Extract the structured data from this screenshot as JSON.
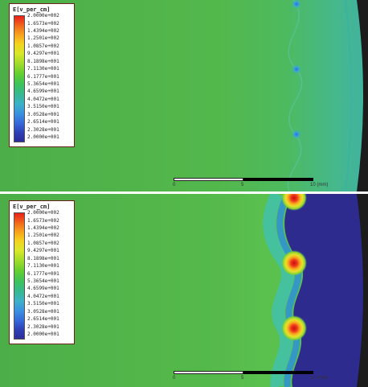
{
  "panels": [
    {
      "legend_title": "E[v_per_cm]",
      "legend_values": [
        "2.0000e+002",
        "1.6573e+002",
        "1.4394e+002",
        "1.2501e+002",
        "1.0857e+002",
        "9.4297e+001",
        "8.1898e+001",
        "7.1130e+001",
        "6.1777e+001",
        "5.3654e+001",
        "4.6599e+001",
        "4.0472e+001",
        "3.5150e+001",
        "3.0528e+001",
        "2.6514e+001",
        "2.3028e+001",
        "2.0000e+001"
      ],
      "scale_ticks": [
        "0",
        "5",
        "10 (mm)"
      ]
    },
    {
      "legend_title": "E[v_per_cm]",
      "legend_values": [
        "2.0000e+002",
        "1.6573e+002",
        "1.4394e+002",
        "1.2501e+002",
        "1.0857e+002",
        "9.4297e+001",
        "8.1898e+001",
        "7.1130e+001",
        "6.1777e+001",
        "5.3654e+001",
        "4.6599e+001",
        "4.0472e+001",
        "3.5150e+001",
        "3.0528e+001",
        "2.6514e+001",
        "2.3028e+001",
        "2.0000e+001"
      ],
      "scale_ticks": [
        "0",
        "5",
        "10 (mm)"
      ]
    }
  ],
  "colors": {
    "field_green": "#4db34a",
    "low_field_blue": "#2e2b8f",
    "hotspot_red": "#e8201c",
    "legend_border": "#6b1f1f"
  }
}
